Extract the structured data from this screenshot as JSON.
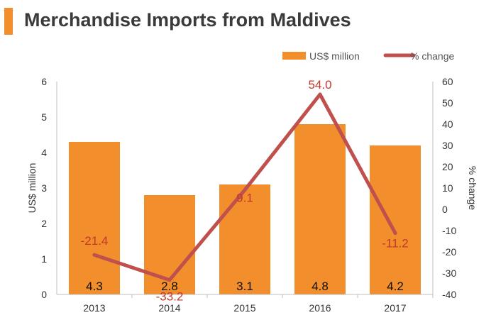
{
  "title": "Merchandise Imports from Maldives",
  "colors": {
    "bar": "#f28e2b",
    "line": "#c0504d",
    "line_label": "#c0392b",
    "title_accent": "#f28e2b",
    "axis": "#bfbfbf",
    "text": "#333333"
  },
  "chart_data": {
    "type": "bar",
    "title": "Merchandise Imports from Maldives",
    "categories": [
      "2013",
      "2014",
      "2015",
      "2016",
      "2017"
    ],
    "series": [
      {
        "name": "US$ million",
        "type": "bar",
        "axis": "left",
        "values": [
          4.3,
          2.8,
          3.1,
          4.8,
          4.2
        ],
        "labels": [
          "4.3",
          "2.8",
          "3.1",
          "4.8",
          "4.2"
        ]
      },
      {
        "name": "% change",
        "type": "line",
        "axis": "right",
        "values": [
          -21.4,
          -33.2,
          9.1,
          54.0,
          -11.2
        ],
        "labels": [
          "-21.4",
          "-33.2",
          "9.1",
          "54.0",
          "-11.2"
        ]
      }
    ],
    "ylabel": "US$ million",
    "ylim": [
      0,
      6
    ],
    "yticks": [
      "0",
      "1",
      "2",
      "3",
      "4",
      "5",
      "6"
    ],
    "y2label": "% change",
    "y2lim": [
      -40,
      60
    ],
    "y2ticks": [
      "-40",
      "-30",
      "-20",
      "-10",
      "0",
      "10",
      "20",
      "30",
      "40",
      "50",
      "60"
    ],
    "legend": "top-right",
    "grid": false
  }
}
